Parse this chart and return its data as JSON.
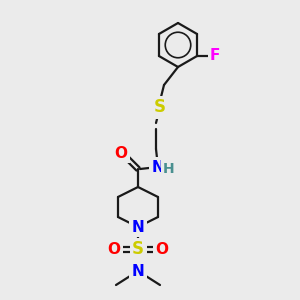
{
  "background_color": "#ebebeb",
  "colors": {
    "O": "#ff0000",
    "N": "#0000ff",
    "S_thio": "#cccc00",
    "S_sulfonyl": "#cccc00",
    "F": "#ff00ff",
    "C": "#000000",
    "H": "#4a9090"
  },
  "bond_color": "#1a1a1a",
  "bond_width": 1.6,
  "font_size": 10,
  "figsize": [
    3.0,
    3.0
  ],
  "dpi": 100
}
